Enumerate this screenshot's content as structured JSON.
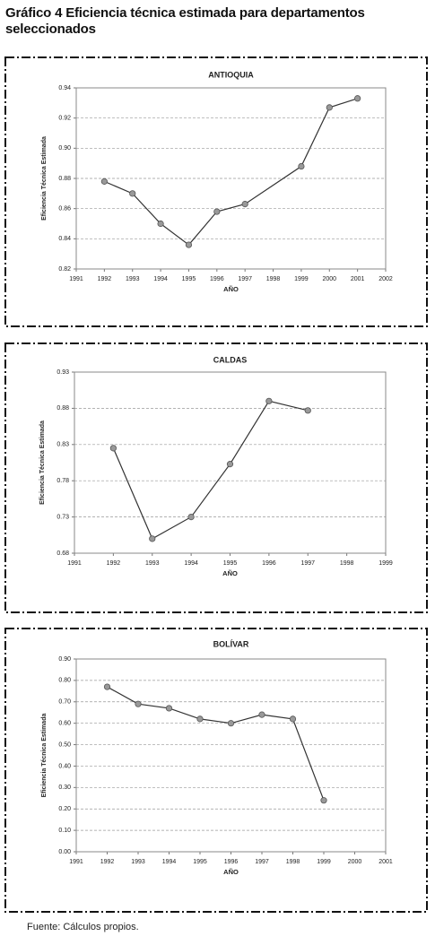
{
  "title": "Gráfico 4 Eficiencia técnica estimada para departamentos seleccionados",
  "source": "Fuente: Cálculos propios.",
  "chart_data": [
    {
      "type": "line",
      "title": "ANTIOQUIA",
      "x_label": "AÑO",
      "y_label": "Eficiencia Técnica Estimada",
      "x": [
        1992,
        1993,
        1994,
        1995,
        1996,
        1997,
        1999,
        2000,
        2001
      ],
      "values": [
        0.878,
        0.87,
        0.85,
        0.836,
        0.858,
        0.863,
        0.888,
        0.927,
        0.933
      ],
      "color": "#333333",
      "marker_color": "#999999",
      "xlim": [
        1991,
        2002
      ],
      "xticks": [
        1991,
        1992,
        1993,
        1994,
        1995,
        1996,
        1997,
        1998,
        1999,
        2000,
        2001,
        2002
      ],
      "ylim": [
        0.82,
        0.94
      ],
      "yticks": [
        0.82,
        0.84,
        0.86,
        0.88,
        {
          "value": 0.9,
          "label": "0.90"
        },
        0.92,
        0.94
      ],
      "grid": true
    },
    {
      "type": "line",
      "title": "CALDAS",
      "x_label": "AÑO",
      "y_label": "Eficiencia Técnica Estimada",
      "x": [
        1992,
        1993,
        1994,
        1995,
        1996,
        1997
      ],
      "values": [
        0.825,
        0.7,
        0.73,
        0.803,
        0.89,
        0.877
      ],
      "color": "#333333",
      "marker_color": "#999999",
      "xlim": [
        1991,
        1999
      ],
      "xticks": [
        1991,
        1992,
        1993,
        1994,
        1995,
        1996,
        1997,
        1998,
        1999
      ],
      "ylim": [
        0.68,
        0.93
      ],
      "yticks": [
        0.68,
        0.73,
        0.78,
        0.83,
        0.88,
        0.93
      ],
      "grid": true
    },
    {
      "type": "line",
      "title": "BOLÍVAR",
      "x_label": "AÑO",
      "y_label": "Eficiencia Técnica Estimada",
      "x": [
        1992,
        1993,
        1994,
        1995,
        1996,
        1997,
        1998,
        1999
      ],
      "values": [
        0.77,
        0.69,
        0.67,
        0.62,
        0.6,
        0.64,
        0.62,
        0.24
      ],
      "color": "#333333",
      "marker_color": "#999999",
      "xlim": [
        1991,
        2001
      ],
      "xticks": [
        1991,
        1992,
        1993,
        1994,
        1995,
        1996,
        1997,
        1998,
        1999,
        2000,
        2001
      ],
      "ylim": [
        0,
        0.9
      ],
      "yticks": [
        {
          "value": 0,
          "label": "0.00"
        },
        {
          "value": 0.1,
          "label": "0.10"
        },
        {
          "value": 0.2,
          "label": "0.20"
        },
        {
          "value": 0.3,
          "label": "0.30"
        },
        {
          "value": 0.4,
          "label": "0.40"
        },
        {
          "value": 0.5,
          "label": "0.50"
        },
        {
          "value": 0.6,
          "label": "0.60"
        },
        {
          "value": 0.7,
          "label": "0.70"
        },
        {
          "value": 0.8,
          "label": "0.80"
        },
        {
          "value": 0.9,
          "label": "0.90"
        }
      ],
      "grid": true
    }
  ]
}
